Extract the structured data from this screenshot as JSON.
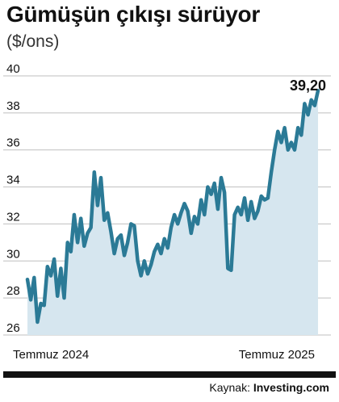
{
  "title": "Gümüşün çıkışı sürüyor",
  "subtitle": "($/ons)",
  "source": {
    "label": "Kaynak:",
    "brand": "Investing.com"
  },
  "colors": {
    "line": "#2b7a96",
    "area": "#d6e6ef",
    "grid": "#bfbfbf",
    "text": "#111111"
  },
  "chart_data": {
    "type": "area",
    "ylabel": "($/ons)",
    "ylim": [
      26,
      40
    ],
    "yticks": [
      "26",
      "28",
      "30",
      "32",
      "34",
      "36",
      "38",
      "40"
    ],
    "xtick_labels": [
      "Temmuz 2024",
      "Temmuz 2025"
    ],
    "grid": true,
    "last_value_label": "39,20",
    "series": [
      {
        "values": [
          29.0,
          27.9,
          29.1,
          26.7,
          27.7,
          27.6,
          29.7,
          29.2,
          30.1,
          28.1,
          29.6,
          28.0,
          31.0,
          30.5,
          32.5,
          31.0,
          32.3,
          30.8,
          31.5,
          31.8,
          34.8,
          33.0,
          34.5,
          32.2,
          32.6,
          31.6,
          30.4,
          31.2,
          31.4,
          30.3,
          31.0,
          32.0,
          31.9,
          30.0,
          29.2,
          30.0,
          29.3,
          29.8,
          30.5,
          30.9,
          30.4,
          31.2,
          30.7,
          31.8,
          32.5,
          32.0,
          32.6,
          33.1,
          32.7,
          31.5,
          32.4,
          32.0,
          33.3,
          32.5,
          34.0,
          33.6,
          34.2,
          32.8,
          34.5,
          33.7,
          29.6,
          29.5,
          32.5,
          32.9,
          32.5,
          33.4,
          32.2,
          33.2,
          32.3,
          32.7,
          33.5,
          33.3,
          33.4,
          34.8,
          36.0,
          37.0,
          36.4,
          37.2,
          36.0,
          36.4,
          36.0,
          37.2,
          36.8,
          38.5,
          37.9,
          38.7,
          38.4,
          39.2
        ]
      }
    ]
  }
}
